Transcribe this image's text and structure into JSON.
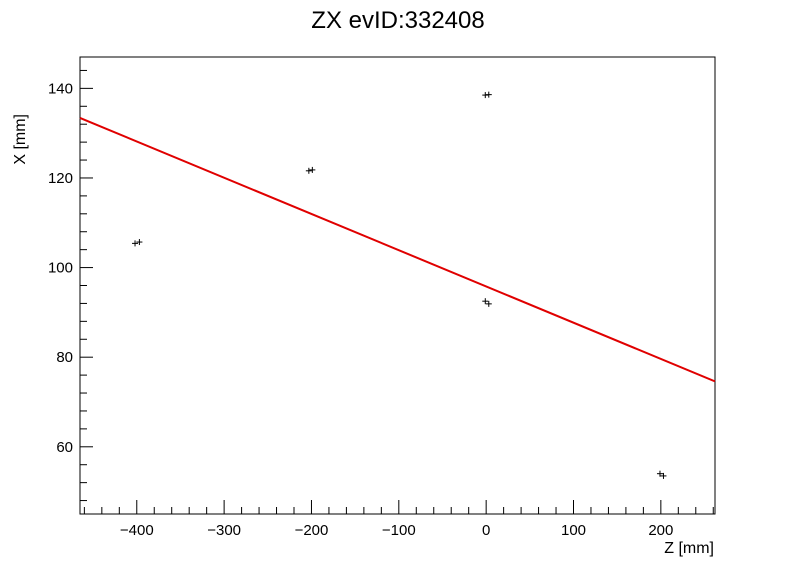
{
  "chart_data": {
    "type": "scatter",
    "title": "ZX evID:332408",
    "xlabel": "Z [mm]",
    "ylabel": "X [mm]",
    "xlim": [
      -465,
      262
    ],
    "ylim": [
      45,
      147
    ],
    "x_ticks": [
      -400,
      -300,
      -200,
      -100,
      0,
      100,
      200
    ],
    "y_ticks": [
      60,
      80,
      100,
      120,
      140
    ],
    "x_tick_labels": [
      "−400",
      "−300",
      "−200",
      "−100",
      "0",
      "100",
      "200"
    ],
    "y_tick_labels": [
      "60",
      "80",
      "100",
      "120",
      "140"
    ],
    "grid": false,
    "legend": "none",
    "points_color": "#000000",
    "fit_color": "#e00000",
    "points": [
      {
        "x": -402,
        "y": 105.4
      },
      {
        "x": -397,
        "y": 105.7
      },
      {
        "x": -203,
        "y": 121.6
      },
      {
        "x": -199,
        "y": 121.8
      },
      {
        "x": -1,
        "y": 138.5
      },
      {
        "x": 3,
        "y": 138.6
      },
      {
        "x": -1,
        "y": 92.5
      },
      {
        "x": 3,
        "y": 91.9
      },
      {
        "x": 199,
        "y": 54.0
      },
      {
        "x": 203,
        "y": 53.5
      }
    ],
    "fit_line": [
      {
        "x": -465,
        "y": 133.4
      },
      {
        "x": 262,
        "y": 74.6
      }
    ]
  }
}
